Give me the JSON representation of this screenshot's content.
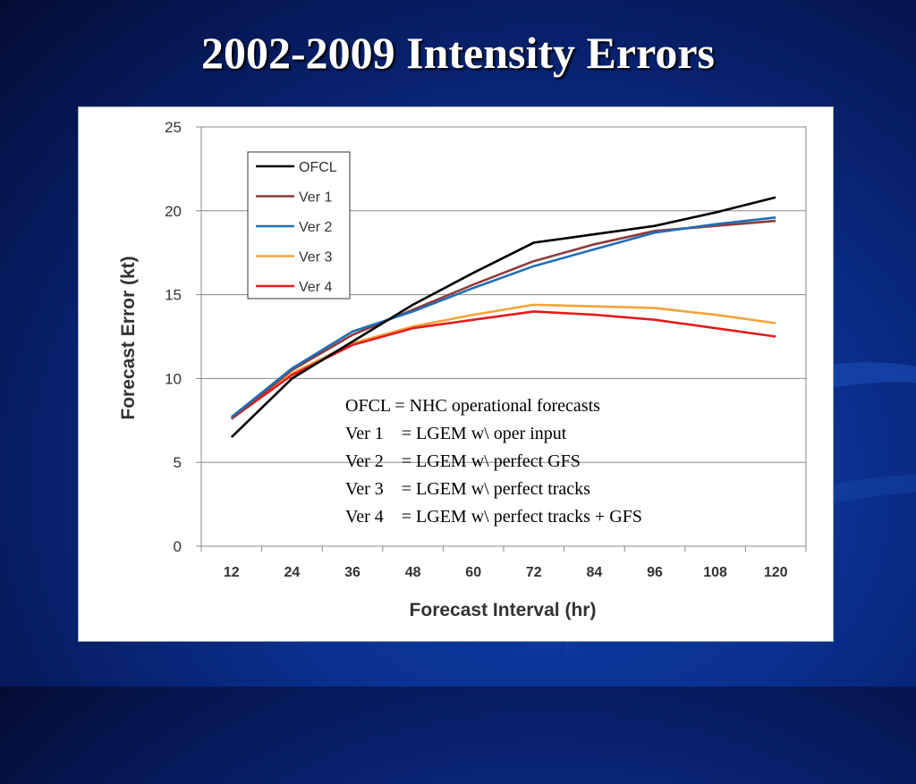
{
  "title": "2002-2009 Intensity Errors",
  "colors": {
    "background": "#0a2f8e",
    "panel": "#ffffff"
  },
  "chart_data": {
    "type": "line",
    "xlabel": "Forecast Interval (hr)",
    "ylabel": "Forecast Error (kt)",
    "x": [
      12,
      24,
      36,
      48,
      60,
      72,
      84,
      96,
      108,
      120
    ],
    "ylim": [
      0,
      25
    ],
    "yticks": [
      0,
      5,
      10,
      15,
      20,
      25
    ],
    "grid": "horizontal",
    "legend_position": "top-left",
    "series": [
      {
        "name": "OFCL",
        "color": "#000000",
        "values": [
          6.5,
          10.0,
          12.2,
          14.4,
          16.3,
          18.1,
          18.6,
          19.1,
          19.9,
          20.8
        ]
      },
      {
        "name": "Ver 1",
        "color": "#8e3b3b",
        "values": [
          7.6,
          10.5,
          12.6,
          14.1,
          15.6,
          17.0,
          18.0,
          18.8,
          19.1,
          19.4
        ]
      },
      {
        "name": "Ver 2",
        "color": "#1f6fb8",
        "values": [
          7.7,
          10.6,
          12.8,
          14.0,
          15.4,
          16.7,
          17.7,
          18.7,
          19.2,
          19.6
        ]
      },
      {
        "name": "Ver 3",
        "color": "#f5a33a",
        "values": [
          7.6,
          10.3,
          12.1,
          13.1,
          13.8,
          14.4,
          14.3,
          14.2,
          13.8,
          13.3
        ]
      },
      {
        "name": "Ver 4",
        "color": "#e41a1c",
        "values": [
          7.6,
          10.2,
          12.0,
          13.0,
          13.5,
          14.0,
          13.8,
          13.5,
          13.0,
          12.5
        ]
      }
    ],
    "annotations": [
      "OFCL = NHC operational forecasts",
      "Ver 1    = LGEM w\\ oper input",
      "Ver 2    = LGEM w\\ perfect GFS",
      "Ver 3    = LGEM w\\ perfect tracks",
      "Ver 4    = LGEM w\\ perfect tracks + GFS"
    ]
  }
}
